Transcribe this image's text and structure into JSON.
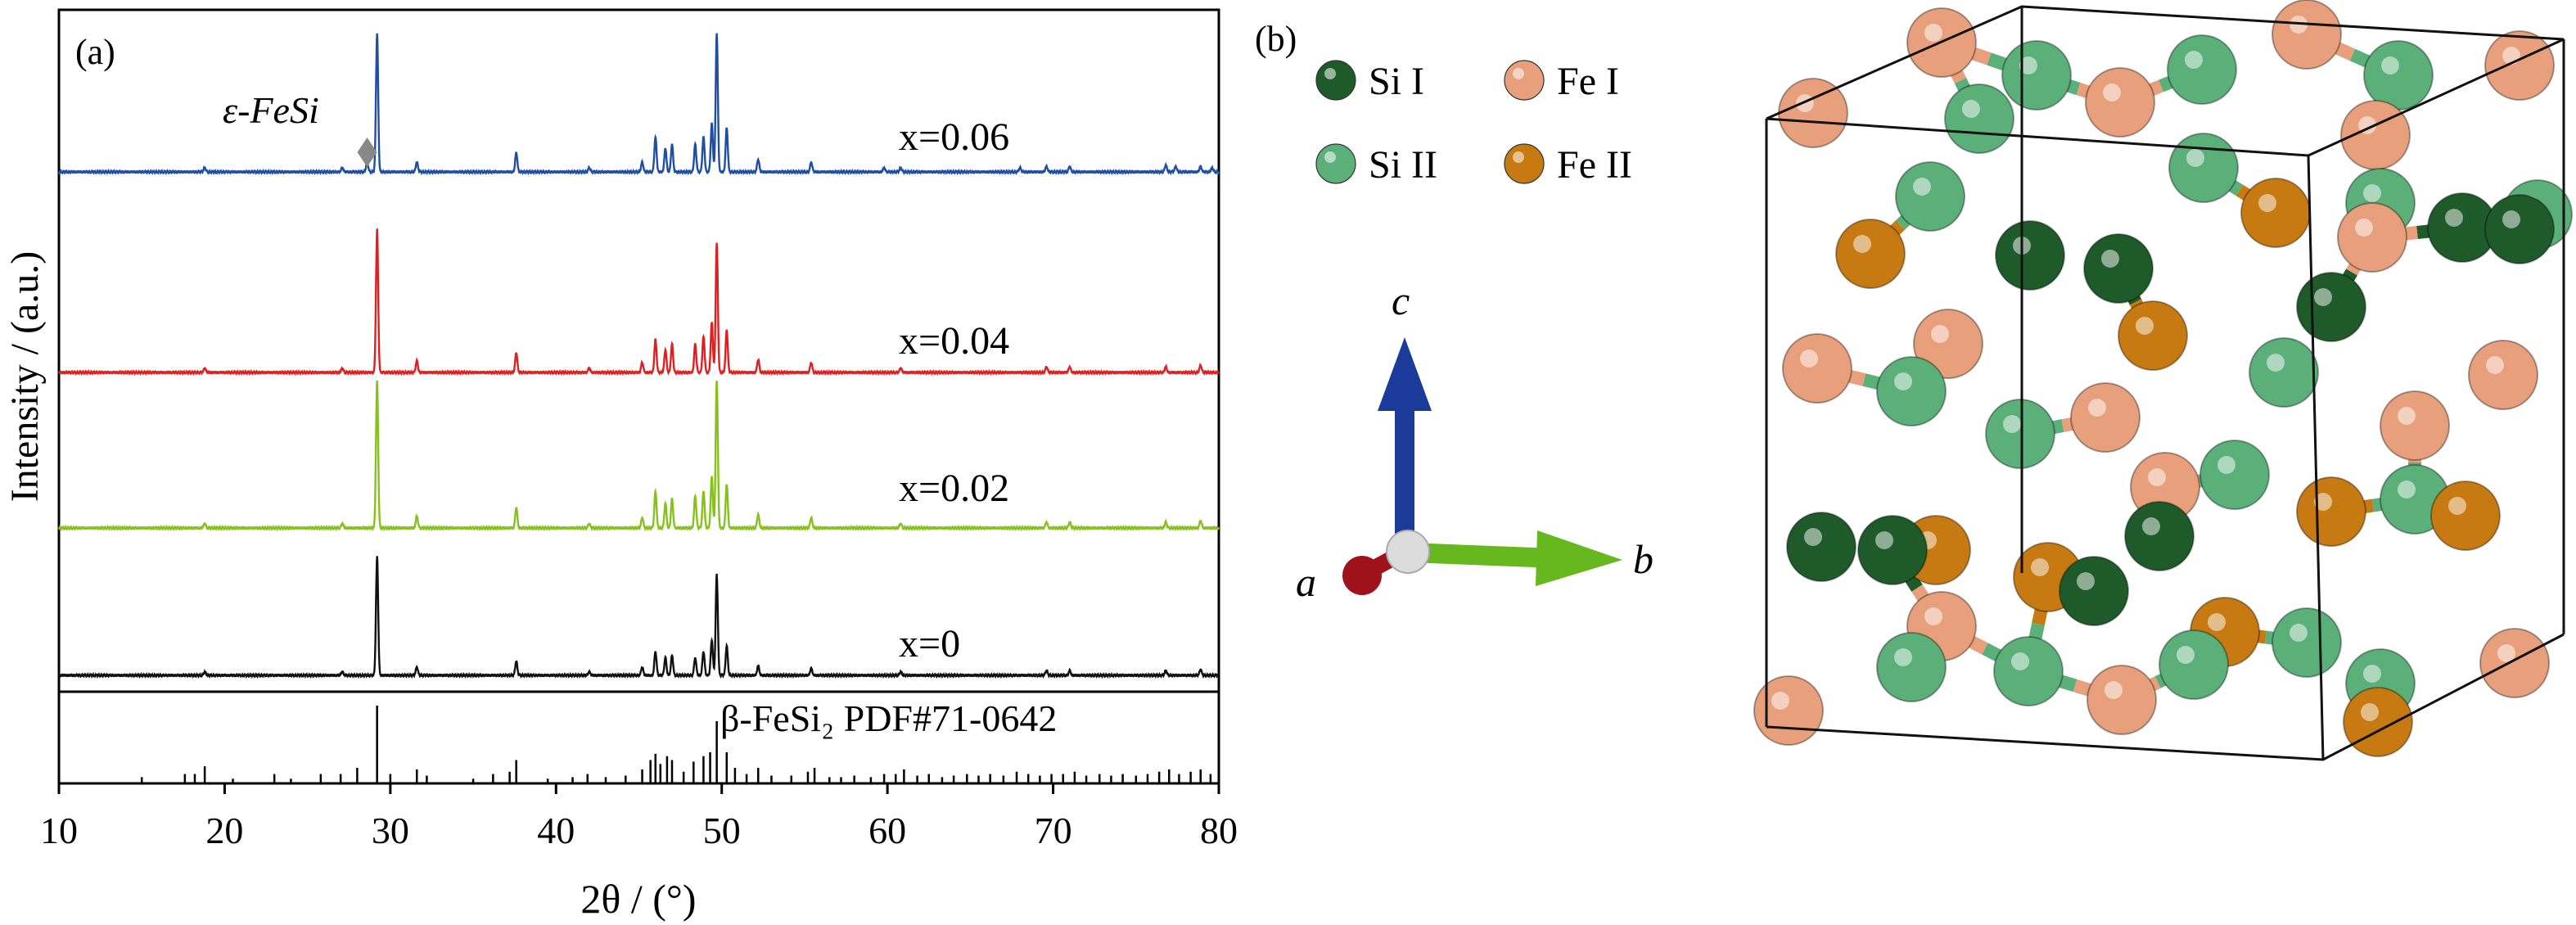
{
  "panel_a": {
    "label": "(a)",
    "ylabel": "Intensity / (a.u.)",
    "xlabel": "2θ / (°)",
    "impurity_label": "ε-FeSi",
    "reference_label": "β-FeSi₂ PDF#71-0642"
  },
  "panel_b": {
    "label": "(b)",
    "legend": [
      {
        "label": "Si I",
        "color": "#1e5a2a"
      },
      {
        "label": "Fe I",
        "color": "#e8a07c"
      },
      {
        "label": "Si II",
        "color": "#5bb07a"
      },
      {
        "label": "Fe II",
        "color": "#c77a12"
      }
    ],
    "axes": {
      "c": "c",
      "a": "a",
      "b": "b"
    },
    "axis_colors": {
      "c": "#1b3a9a",
      "a": "#a0121a",
      "b": "#66b81e"
    }
  },
  "chart_data": {
    "type": "line",
    "xlim": [
      10,
      80
    ],
    "xticks": [
      10,
      20,
      30,
      40,
      50,
      60,
      70,
      80
    ],
    "series": [
      {
        "name": "x=0.06",
        "color": "#1f4ea3",
        "peaks": [
          [
            18.8,
            0.03
          ],
          [
            27.1,
            0.03
          ],
          [
            28.6,
            0.07
          ],
          [
            29.2,
            1.0
          ],
          [
            31.6,
            0.07
          ],
          [
            37.6,
            0.14
          ],
          [
            42.0,
            0.03
          ],
          [
            45.2,
            0.07
          ],
          [
            46.0,
            0.25
          ],
          [
            46.6,
            0.17
          ],
          [
            47.0,
            0.2
          ],
          [
            48.4,
            0.2
          ],
          [
            48.9,
            0.25
          ],
          [
            49.4,
            0.35
          ],
          [
            49.7,
            1.0
          ],
          [
            50.3,
            0.32
          ],
          [
            52.2,
            0.09
          ],
          [
            55.4,
            0.07
          ],
          [
            59.8,
            0.03
          ],
          [
            60.8,
            0.03
          ],
          [
            68.0,
            0.03
          ],
          [
            69.6,
            0.04
          ],
          [
            71.0,
            0.04
          ],
          [
            76.8,
            0.05
          ],
          [
            77.4,
            0.04
          ],
          [
            78.9,
            0.04
          ],
          [
            79.6,
            0.03
          ]
        ]
      },
      {
        "name": "x=0.04",
        "color": "#e02020",
        "peaks": [
          [
            18.8,
            0.03
          ],
          [
            27.1,
            0.03
          ],
          [
            29.2,
            1.0
          ],
          [
            31.6,
            0.08
          ],
          [
            37.6,
            0.14
          ],
          [
            42.0,
            0.03
          ],
          [
            45.2,
            0.07
          ],
          [
            46.0,
            0.23
          ],
          [
            46.6,
            0.16
          ],
          [
            47.0,
            0.2
          ],
          [
            48.4,
            0.2
          ],
          [
            48.9,
            0.25
          ],
          [
            49.4,
            0.35
          ],
          [
            49.7,
            0.9
          ],
          [
            50.3,
            0.3
          ],
          [
            52.2,
            0.09
          ],
          [
            55.4,
            0.07
          ],
          [
            60.8,
            0.03
          ],
          [
            69.6,
            0.04
          ],
          [
            71.0,
            0.04
          ],
          [
            76.8,
            0.04
          ],
          [
            78.9,
            0.05
          ]
        ]
      },
      {
        "name": "x=0.02",
        "color": "#86c11e",
        "peaks": [
          [
            18.8,
            0.03
          ],
          [
            27.1,
            0.03
          ],
          [
            29.2,
            1.0
          ],
          [
            31.6,
            0.08
          ],
          [
            37.6,
            0.14
          ],
          [
            42.0,
            0.03
          ],
          [
            45.2,
            0.07
          ],
          [
            46.0,
            0.25
          ],
          [
            46.6,
            0.17
          ],
          [
            47.0,
            0.2
          ],
          [
            48.4,
            0.22
          ],
          [
            48.9,
            0.25
          ],
          [
            49.4,
            0.35
          ],
          [
            49.7,
            1.0
          ],
          [
            50.3,
            0.3
          ],
          [
            52.2,
            0.09
          ],
          [
            55.4,
            0.07
          ],
          [
            60.8,
            0.03
          ],
          [
            69.6,
            0.04
          ],
          [
            71.0,
            0.04
          ],
          [
            76.8,
            0.04
          ],
          [
            78.9,
            0.05
          ]
        ]
      },
      {
        "name": "x=0",
        "color": "#111111",
        "peaks": [
          [
            18.8,
            0.03
          ],
          [
            27.1,
            0.03
          ],
          [
            29.2,
            1.0
          ],
          [
            31.6,
            0.07
          ],
          [
            37.6,
            0.12
          ],
          [
            42.0,
            0.03
          ],
          [
            45.2,
            0.07
          ],
          [
            46.0,
            0.2
          ],
          [
            46.6,
            0.15
          ],
          [
            47.0,
            0.17
          ],
          [
            48.4,
            0.15
          ],
          [
            48.9,
            0.2
          ],
          [
            49.4,
            0.3
          ],
          [
            49.7,
            0.85
          ],
          [
            50.3,
            0.25
          ],
          [
            52.2,
            0.08
          ],
          [
            55.4,
            0.06
          ],
          [
            60.8,
            0.03
          ],
          [
            69.6,
            0.04
          ],
          [
            71.0,
            0.04
          ],
          [
            76.8,
            0.04
          ],
          [
            78.9,
            0.05
          ]
        ]
      }
    ],
    "impurity_peak_x": 28.6,
    "reference_sticks": [
      [
        15.0,
        0.08
      ],
      [
        17.6,
        0.12
      ],
      [
        18.2,
        0.12
      ],
      [
        18.8,
        0.22
      ],
      [
        20.5,
        0.06
      ],
      [
        23.0,
        0.12
      ],
      [
        24.0,
        0.06
      ],
      [
        25.8,
        0.12
      ],
      [
        27.0,
        0.12
      ],
      [
        28.0,
        0.2
      ],
      [
        29.2,
        1.0
      ],
      [
        30.0,
        0.12
      ],
      [
        31.6,
        0.18
      ],
      [
        32.2,
        0.1
      ],
      [
        35.0,
        0.06
      ],
      [
        36.2,
        0.12
      ],
      [
        37.2,
        0.15
      ],
      [
        37.6,
        0.3
      ],
      [
        39.5,
        0.06
      ],
      [
        41.0,
        0.08
      ],
      [
        41.9,
        0.12
      ],
      [
        43.0,
        0.08
      ],
      [
        44.2,
        0.1
      ],
      [
        45.2,
        0.18
      ],
      [
        45.7,
        0.3
      ],
      [
        46.0,
        0.38
      ],
      [
        46.3,
        0.25
      ],
      [
        46.7,
        0.35
      ],
      [
        47.0,
        0.3
      ],
      [
        47.7,
        0.15
      ],
      [
        48.3,
        0.28
      ],
      [
        48.9,
        0.35
      ],
      [
        49.3,
        0.4
      ],
      [
        49.7,
        0.8
      ],
      [
        50.3,
        0.4
      ],
      [
        50.8,
        0.2
      ],
      [
        51.5,
        0.12
      ],
      [
        52.2,
        0.2
      ],
      [
        53.0,
        0.1
      ],
      [
        54.2,
        0.1
      ],
      [
        55.2,
        0.15
      ],
      [
        55.6,
        0.2
      ],
      [
        56.5,
        0.08
      ],
      [
        57.2,
        0.08
      ],
      [
        58.0,
        0.1
      ],
      [
        59.0,
        0.08
      ],
      [
        59.8,
        0.12
      ],
      [
        60.5,
        0.12
      ],
      [
        61.0,
        0.18
      ],
      [
        61.8,
        0.1
      ],
      [
        62.5,
        0.12
      ],
      [
        63.3,
        0.08
      ],
      [
        64.0,
        0.1
      ],
      [
        64.8,
        0.12
      ],
      [
        65.5,
        0.1
      ],
      [
        66.2,
        0.12
      ],
      [
        67.0,
        0.1
      ],
      [
        67.8,
        0.15
      ],
      [
        68.5,
        0.12
      ],
      [
        69.2,
        0.1
      ],
      [
        69.9,
        0.12
      ],
      [
        70.6,
        0.12
      ],
      [
        71.3,
        0.15
      ],
      [
        72.0,
        0.1
      ],
      [
        72.8,
        0.12
      ],
      [
        73.5,
        0.1
      ],
      [
        74.2,
        0.12
      ],
      [
        75.0,
        0.1
      ],
      [
        75.7,
        0.12
      ],
      [
        76.4,
        0.15
      ],
      [
        77.0,
        0.18
      ],
      [
        77.6,
        0.12
      ],
      [
        78.3,
        0.15
      ],
      [
        78.9,
        0.18
      ],
      [
        79.5,
        0.12
      ]
    ]
  }
}
